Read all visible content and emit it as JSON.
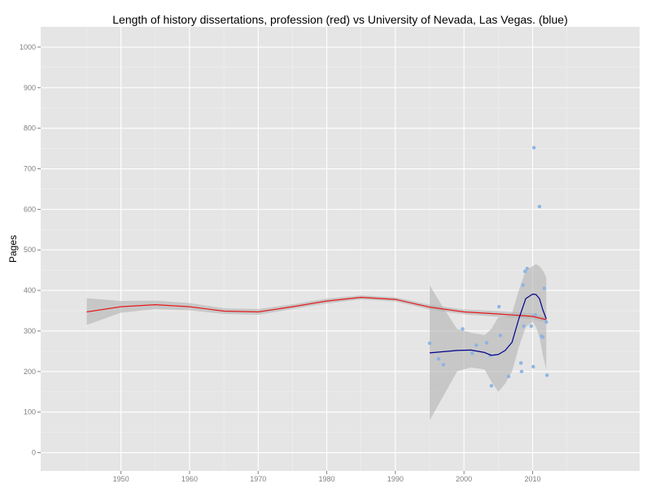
{
  "chart_data": {
    "type": "scatter",
    "title": "Length of history dissertations, profession (red) vs University of Nevada, Las Vegas. (blue)",
    "xlabel": "",
    "ylabel": "Pages",
    "xlim": [
      1938.3,
      2025.6
    ],
    "ylim": [
      -45,
      1050
    ],
    "x_ticks": [
      1950,
      1960,
      1970,
      1980,
      1990,
      2000,
      2010
    ],
    "y_ticks": [
      0,
      100,
      200,
      300,
      400,
      500,
      600,
      700,
      800,
      900,
      1000
    ],
    "grid": true,
    "colors": {
      "panel": "#e5e5e5",
      "grid_major": "#ffffff",
      "grid_minor": "#f0f0f0",
      "profession": "#e41a1c",
      "unlv": "#00008b",
      "points": "#8db4e2",
      "band": "#b3b3b3"
    },
    "series": [
      {
        "kind": "points",
        "x": [
          1995.0,
          1996.3,
          1997.0,
          1999.8,
          2001.2,
          2001.8,
          2003.3,
          2003.8,
          2004.0,
          2005.1,
          2005.3,
          2006.5,
          2008.3,
          2008.4,
          2008.6,
          2008.7,
          2008.9,
          2009.2,
          2009.8,
          2010.1,
          2010.2,
          2010.4,
          2011.0,
          2011.3,
          2011.5,
          2011.7,
          2012.0,
          2012.1
        ],
        "y": [
          270,
          231,
          217,
          305,
          245,
          265,
          271,
          240,
          165,
          360,
          289,
          188,
          221,
          200,
          413,
          312,
          447,
          454,
          312,
          212,
          752,
          340,
          607,
          287,
          285,
          405,
          322,
          191
        ]
      },
      {
        "kind": "smooth",
        "x": [
          1945,
          1950,
          1955,
          1960,
          1965,
          1970,
          1975,
          1980,
          1985,
          1990,
          1995,
          2000,
          2005,
          2010,
          2012
        ],
        "y": [
          347,
          360,
          365,
          360,
          349,
          347,
          360,
          374,
          383,
          378,
          359,
          347,
          342,
          336,
          328
        ],
        "lower": [
          315,
          345,
          354,
          351,
          342,
          340,
          354,
          368,
          378,
          373,
          353,
          341,
          335,
          329,
          321
        ],
        "upper": [
          381,
          374,
          375,
          369,
          356,
          354,
          366,
          380,
          388,
          383,
          365,
          353,
          349,
          343,
          335
        ]
      },
      {
        "kind": "smooth",
        "x": [
          1995,
          1997,
          1999,
          2001,
          2003,
          2004,
          2005,
          2006,
          2007,
          2008,
          2009,
          2010,
          2010.5,
          2011,
          2011.5,
          2012
        ],
        "y": [
          246,
          249,
          252,
          253,
          247,
          240,
          242,
          252,
          272,
          330,
          380,
          391,
          390,
          380,
          352,
          330
        ],
        "lower": [
          80,
          140,
          200,
          210,
          205,
          175,
          150,
          170,
          200,
          260,
          310,
          322,
          310,
          285,
          240,
          205
        ],
        "upper": [
          413,
          357,
          305,
          296,
          290,
          305,
          334,
          334,
          344,
          400,
          450,
          460,
          465,
          460,
          450,
          432
        ]
      }
    ]
  }
}
